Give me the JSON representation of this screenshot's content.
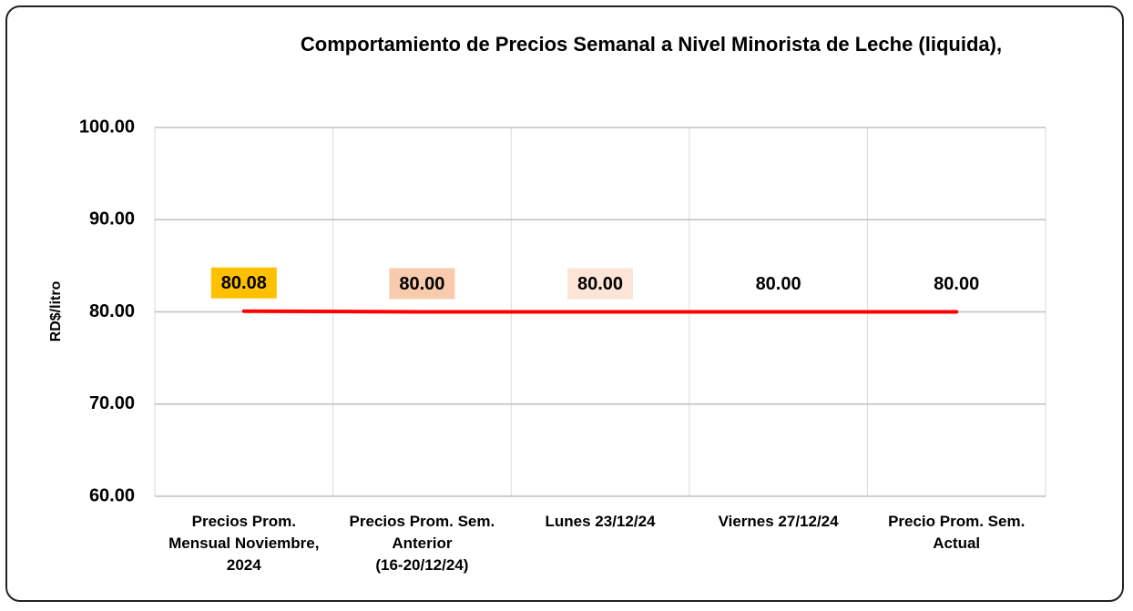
{
  "chart_data": {
    "type": "line",
    "title": "Comportamiento de Precios Semanal a Nivel Minorista de Leche (liquida),",
    "y_label": "RD$/litro",
    "categories": [
      "Precios Prom.\nMensual Noviembre,\n2024",
      "Precios Prom. Sem.\nAnterior\n(16-20/12/24)",
      "Lunes 23/12/24",
      "Viernes 27/12/24",
      "Precio Prom. Sem.\nActual"
    ],
    "series": [
      {
        "name": "Leche (liquida)",
        "color": "#ff0000",
        "values": [
          80.08,
          80,
          80,
          80,
          80
        ],
        "value_labels": [
          "80.08",
          "80.00",
          "80.00",
          "80.00",
          "80.00"
        ],
        "label_backgrounds": [
          "#ffc000",
          "#f8cbad",
          "#fce4d6",
          null,
          null
        ]
      }
    ],
    "ylim": [
      60,
      100
    ],
    "yticks": [
      {
        "value": 60,
        "label": "60.00"
      },
      {
        "value": 70,
        "label": "70.00"
      },
      {
        "value": 80,
        "label": "80.00"
      },
      {
        "value": 90,
        "label": "90.00"
      },
      {
        "value": 100,
        "label": "100.00"
      }
    ],
    "grid": true
  }
}
